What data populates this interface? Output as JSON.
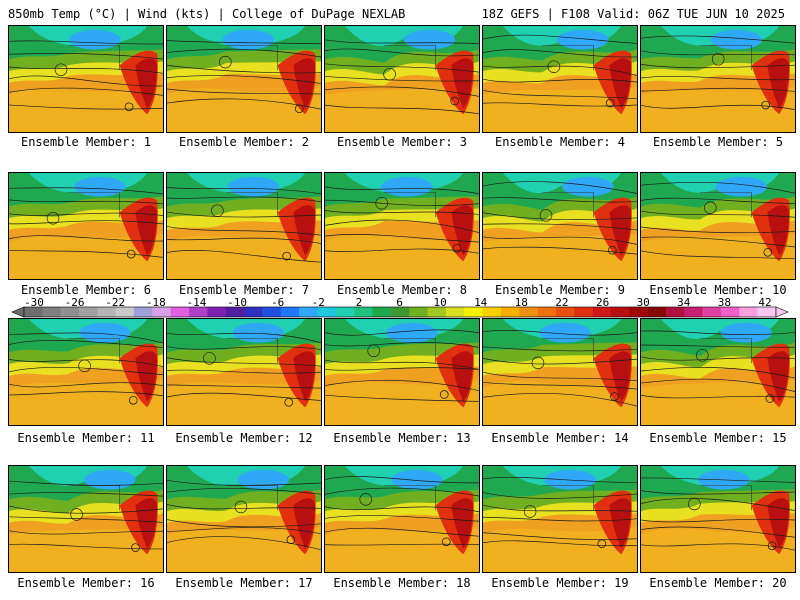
{
  "header": {
    "left_title": "850mb Temp (°C) | Wind (kts) | College of DuPage NEXLAB",
    "right_title": "18Z GEFS | F108 Valid: 06Z TUE JUN 10 2025"
  },
  "panels": [
    {
      "label": "Ensemble Member: 1"
    },
    {
      "label": "Ensemble Member: 2"
    },
    {
      "label": "Ensemble Member: 3"
    },
    {
      "label": "Ensemble Member: 4"
    },
    {
      "label": "Ensemble Member: 5"
    },
    {
      "label": "Ensemble Member: 6"
    },
    {
      "label": "Ensemble Member: 7"
    },
    {
      "label": "Ensemble Member: 8"
    },
    {
      "label": "Ensemble Member: 9"
    },
    {
      "label": "Ensemble Member: 10"
    },
    {
      "label": "Ensemble Member: 11"
    },
    {
      "label": "Ensemble Member: 12"
    },
    {
      "label": "Ensemble Member: 13"
    },
    {
      "label": "Ensemble Member: 14"
    },
    {
      "label": "Ensemble Member: 15"
    },
    {
      "label": "Ensemble Member: 16"
    },
    {
      "label": "Ensemble Member: 17"
    },
    {
      "label": "Ensemble Member: 18"
    },
    {
      "label": "Ensemble Member: 19"
    },
    {
      "label": "Ensemble Member: 20"
    }
  ],
  "colorbar": {
    "tick_labels": [
      "-30",
      "-26",
      "-22",
      "-18",
      "-14",
      "-10",
      "-6",
      "-2",
      "2",
      "6",
      "10",
      "14",
      "18",
      "22",
      "26",
      "30",
      "34",
      "38",
      "42"
    ],
    "colors": [
      "#6e6e6e",
      "#7f7f7f",
      "#909090",
      "#a0a0a0",
      "#b4b4b4",
      "#c8c8c8",
      "#a0a0d8",
      "#d8a0e8",
      "#e060e0",
      "#b040c8",
      "#8020b0",
      "#5020a0",
      "#3030c0",
      "#2050e0",
      "#2078f8",
      "#30a8f8",
      "#20c8e0",
      "#20d0b0",
      "#20c080",
      "#20a850",
      "#409830",
      "#70b020",
      "#a0c820",
      "#d8e020",
      "#f8f000",
      "#f8d000",
      "#f8b000",
      "#f09010",
      "#f07010",
      "#e85010",
      "#e03010",
      "#d01818",
      "#b81010",
      "#a00808",
      "#880808",
      "#b01040",
      "#c82070",
      "#e040a0",
      "#f060c8",
      "#f8a0e0",
      "#f8c8f0"
    ]
  }
}
